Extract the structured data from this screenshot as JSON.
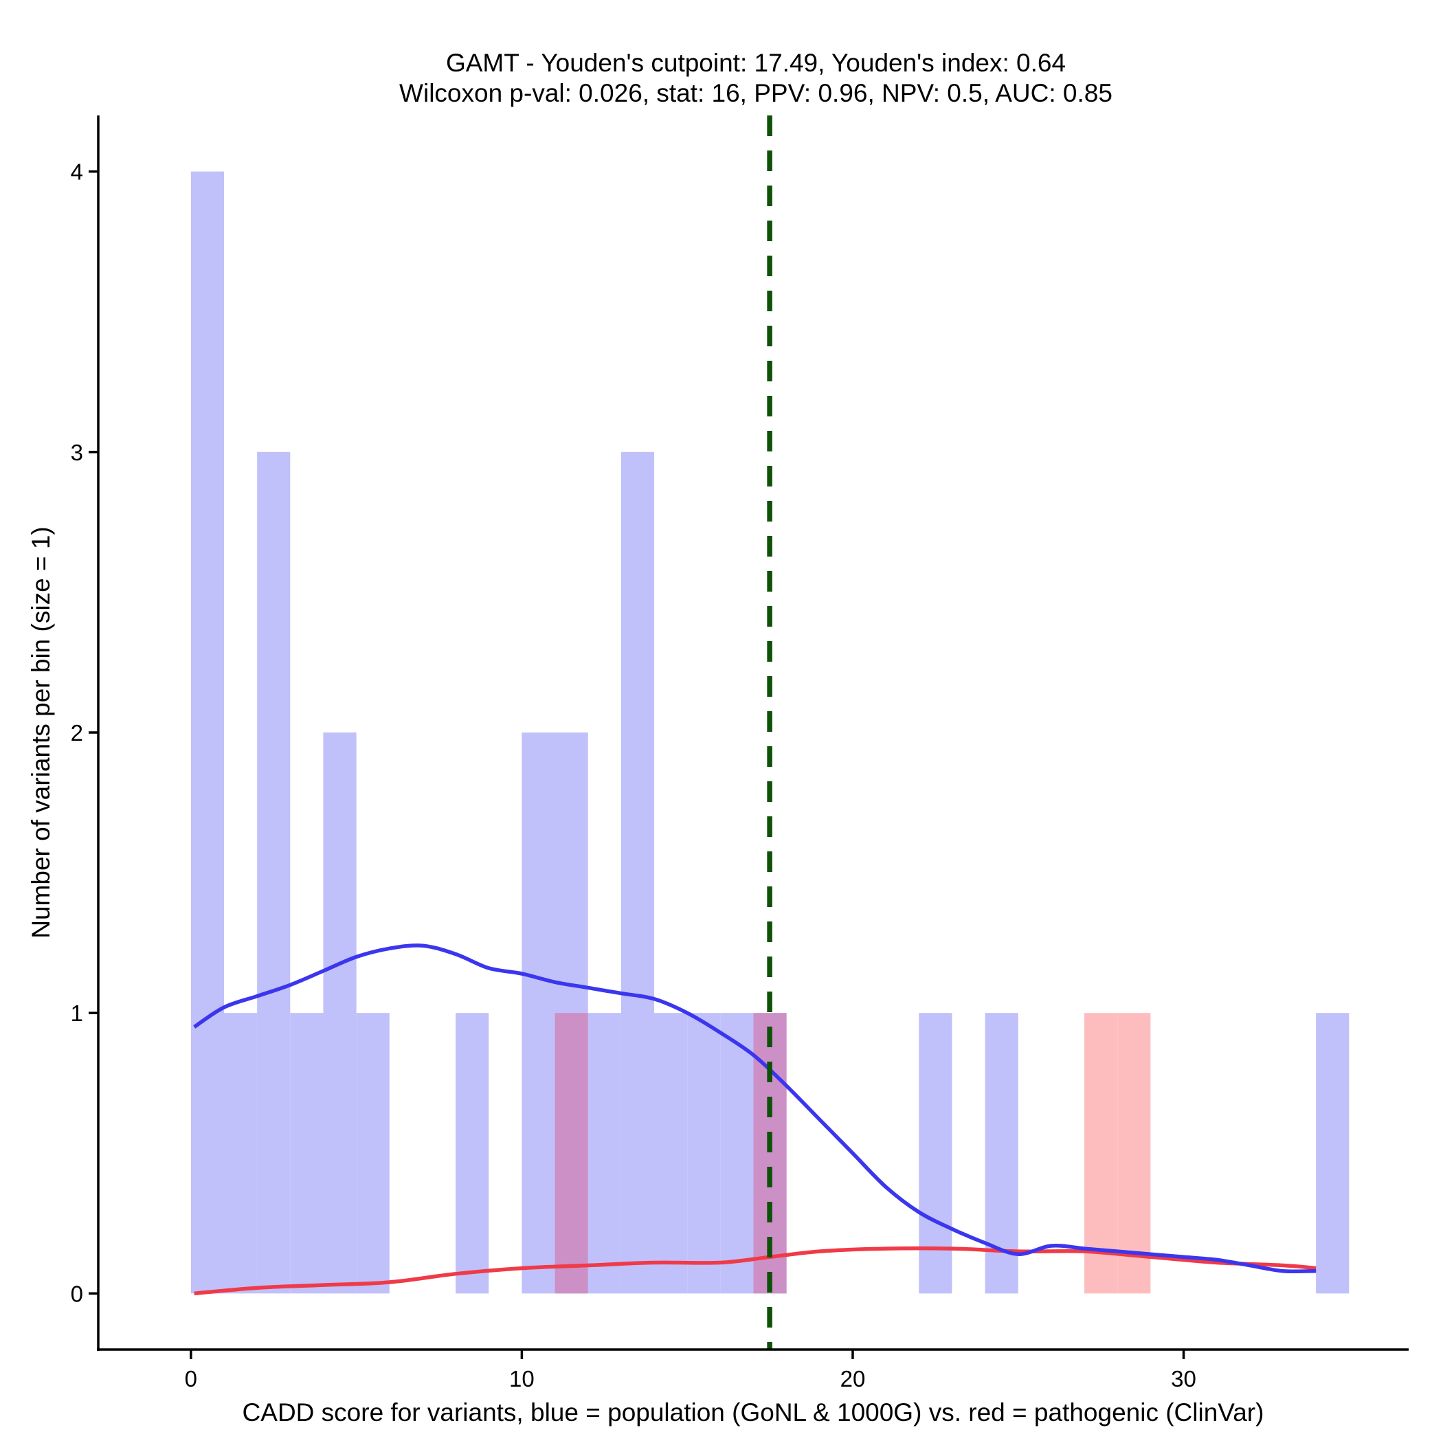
{
  "chart_data": {
    "type": "bar",
    "title_line1": "GAMT - Youden's cutpoint: 17.49, Youden's index: 0.64",
    "title_line2": "Wilcoxon p-val: 0.026, stat: 16, PPV: 0.96, NPV: 0.5, AUC: 0.85",
    "xlabel": "CADD score for variants, blue = population (GoNL & 1000G) vs. red = pathogenic (ClinVar)",
    "ylabel": "Number of variants per bin (size = 1)",
    "xlim": [
      -2.8,
      36.8
    ],
    "ylim": [
      -0.2,
      4.2
    ],
    "x_ticks": [
      0,
      10,
      20,
      30
    ],
    "y_ticks": [
      0,
      1,
      2,
      3,
      4
    ],
    "cutpoint": 17.49,
    "colors": {
      "population_bar": "#c0c0fa",
      "pathogenic_bar": "#fdbdbf",
      "overlap_bar": "#cd90c6",
      "population_line": "#3b36ee",
      "pathogenic_line": "#f03a47",
      "cutpoint_line": "#0d5206"
    },
    "series": [
      {
        "name": "population (GoNL & 1000G)",
        "bins": [
          {
            "start": 0,
            "count": 4
          },
          {
            "start": 1,
            "count": 1
          },
          {
            "start": 2,
            "count": 3
          },
          {
            "start": 3,
            "count": 1
          },
          {
            "start": 4,
            "count": 2
          },
          {
            "start": 5,
            "count": 1
          },
          {
            "start": 8,
            "count": 1
          },
          {
            "start": 10,
            "count": 2
          },
          {
            "start": 11,
            "count": 2
          },
          {
            "start": 12,
            "count": 1
          },
          {
            "start": 13,
            "count": 3
          },
          {
            "start": 14,
            "count": 1
          },
          {
            "start": 15,
            "count": 1
          },
          {
            "start": 16,
            "count": 1
          },
          {
            "start": 17,
            "count": 1
          },
          {
            "start": 22,
            "count": 1
          },
          {
            "start": 24,
            "count": 1
          },
          {
            "start": 34,
            "count": 1
          }
        ],
        "density": [
          [
            0.1,
            0.95
          ],
          [
            1,
            1.02
          ],
          [
            2,
            1.06
          ],
          [
            3,
            1.1
          ],
          [
            4,
            1.15
          ],
          [
            5,
            1.2
          ],
          [
            6,
            1.23
          ],
          [
            7,
            1.24
          ],
          [
            8,
            1.21
          ],
          [
            9,
            1.16
          ],
          [
            10,
            1.14
          ],
          [
            11,
            1.11
          ],
          [
            12,
            1.09
          ],
          [
            13,
            1.07
          ],
          [
            14,
            1.05
          ],
          [
            15,
            1.0
          ],
          [
            16,
            0.93
          ],
          [
            17,
            0.85
          ],
          [
            18,
            0.74
          ],
          [
            19,
            0.62
          ],
          [
            20,
            0.5
          ],
          [
            21,
            0.38
          ],
          [
            22,
            0.29
          ],
          [
            23,
            0.23
          ],
          [
            24,
            0.18
          ],
          [
            25,
            0.14
          ],
          [
            26,
            0.17
          ],
          [
            27,
            0.16
          ],
          [
            28,
            0.15
          ],
          [
            29,
            0.14
          ],
          [
            30,
            0.13
          ],
          [
            31,
            0.12
          ],
          [
            32,
            0.1
          ],
          [
            33,
            0.08
          ],
          [
            34,
            0.08
          ]
        ]
      },
      {
        "name": "pathogenic (ClinVar)",
        "bins": [
          {
            "start": 11,
            "count": 1
          },
          {
            "start": 17,
            "count": 1
          },
          {
            "start": 27,
            "count": 1
          },
          {
            "start": 28,
            "count": 1
          }
        ],
        "density": [
          [
            0.1,
            0.0
          ],
          [
            2,
            0.02
          ],
          [
            4,
            0.03
          ],
          [
            6,
            0.04
          ],
          [
            8,
            0.07
          ],
          [
            10,
            0.09
          ],
          [
            12,
            0.1
          ],
          [
            14,
            0.11
          ],
          [
            16,
            0.11
          ],
          [
            17.5,
            0.13
          ],
          [
            19,
            0.15
          ],
          [
            21,
            0.16
          ],
          [
            23,
            0.16
          ],
          [
            25,
            0.15
          ],
          [
            27,
            0.15
          ],
          [
            29,
            0.13
          ],
          [
            31,
            0.11
          ],
          [
            33,
            0.1
          ],
          [
            34,
            0.09
          ]
        ]
      }
    ]
  }
}
